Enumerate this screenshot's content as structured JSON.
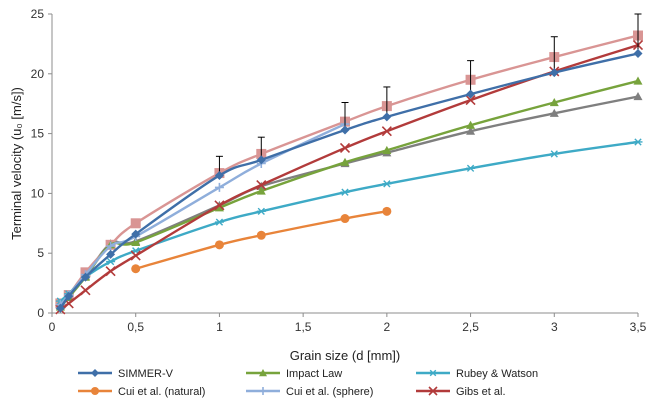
{
  "chart_data": {
    "type": "line",
    "xlabel": "Grain size (d [mm])",
    "ylabel": "Terminal velocity (u₀ [m/s])",
    "xlim": [
      0,
      3.5
    ],
    "ylim": [
      0,
      25
    ],
    "xticks": [
      "0",
      "0,5",
      "1",
      "1,5",
      "2",
      "2,5",
      "3",
      "3,5"
    ],
    "yticks": [
      "0",
      "5",
      "10",
      "15",
      "20",
      "25"
    ],
    "xtick_values": [
      0,
      0.5,
      1,
      1.5,
      2,
      2.5,
      3,
      3.5
    ],
    "ytick_values": [
      0,
      5,
      10,
      15,
      20,
      25
    ],
    "grid": false,
    "legend_position": "bottom",
    "series": [
      {
        "name": "SIMMER-V",
        "color": "#3f6fa8",
        "marker": "diamond",
        "x": [
          0.05,
          0.1,
          0.2,
          0.35,
          0.5,
          1,
          1.25,
          1.75,
          2,
          2.5,
          3,
          3.5
        ],
        "y": [
          0.4,
          1.4,
          3.0,
          4.9,
          6.6,
          11.5,
          12.8,
          15.3,
          16.4,
          18.3,
          20.1,
          21.7
        ],
        "error_up": [
          0,
          0,
          0,
          0,
          0,
          1.6,
          1.9,
          2.3,
          2.5,
          2.8,
          3.0,
          3.3
        ]
      },
      {
        "name": "Impact Law",
        "color": "#77a33c",
        "marker": "triangle",
        "x": [
          0.05,
          0.1,
          0.2,
          0.35,
          0.5,
          1,
          1.25,
          1.75,
          2,
          2.5,
          3,
          3.5
        ],
        "y": [
          0.5,
          1.3,
          3.0,
          5.7,
          5.9,
          8.8,
          10.2,
          12.6,
          13.6,
          15.7,
          17.6,
          19.4
        ]
      },
      {
        "name": "Rubey & Watson",
        "color": "#3eaac6",
        "marker": "asterisk",
        "x": [
          0.05,
          0.1,
          0.2,
          0.35,
          0.5,
          1,
          1.25,
          1.75,
          2,
          2.5,
          3,
          3.5
        ],
        "y": [
          1.0,
          1.6,
          3.0,
          4.3,
          5.2,
          7.6,
          8.5,
          10.1,
          10.8,
          12.1,
          13.3,
          14.3
        ]
      },
      {
        "name": "Cui et al. (natural)",
        "color": "#e8843a",
        "marker": "circle",
        "x": [
          0.5,
          1,
          1.25,
          1.75,
          2
        ],
        "y": [
          3.7,
          5.7,
          6.5,
          7.9,
          8.5
        ]
      },
      {
        "name": "Cui et al.  (sphere)",
        "color": "#8faedb",
        "marker": "plus",
        "x": [
          0.05,
          0.1,
          0.2,
          0.35,
          0.5,
          1,
          1.25,
          1.75
        ],
        "y": [
          0.7,
          1.5,
          3.2,
          5.6,
          6.4,
          10.5,
          12.5,
          15.8
        ]
      },
      {
        "name": "Gibs et al.",
        "color": "#b23b3b",
        "marker": "x",
        "x": [
          0.05,
          0.1,
          0.2,
          0.35,
          0.5,
          1,
          1.25,
          1.75,
          2,
          2.5,
          3,
          3.5
        ],
        "y": [
          0.3,
          0.8,
          1.9,
          3.5,
          4.8,
          9.0,
          10.7,
          13.8,
          15.2,
          17.8,
          20.2,
          22.4
        ]
      },
      {
        "name": "",
        "color": "#7f7f7f",
        "marker": "triangle",
        "x": [
          0.05,
          0.1,
          0.2,
          0.35,
          0.5,
          1,
          1.25,
          1.75,
          2,
          2.5,
          3,
          3.5
        ],
        "y": [
          0.6,
          1.4,
          3.1,
          5.8,
          6.0,
          9.0,
          10.6,
          12.5,
          13.4,
          15.2,
          16.7,
          18.1
        ]
      },
      {
        "name": "",
        "color": "#d99594",
        "marker": "square",
        "x": [
          0.05,
          0.1,
          0.2,
          0.35,
          0.5,
          1,
          1.25,
          1.75,
          2,
          2.5,
          3,
          3.5
        ],
        "y": [
          0.8,
          1.5,
          3.4,
          5.7,
          7.5,
          11.7,
          13.3,
          16.0,
          17.3,
          19.5,
          21.4,
          23.2
        ]
      }
    ]
  }
}
